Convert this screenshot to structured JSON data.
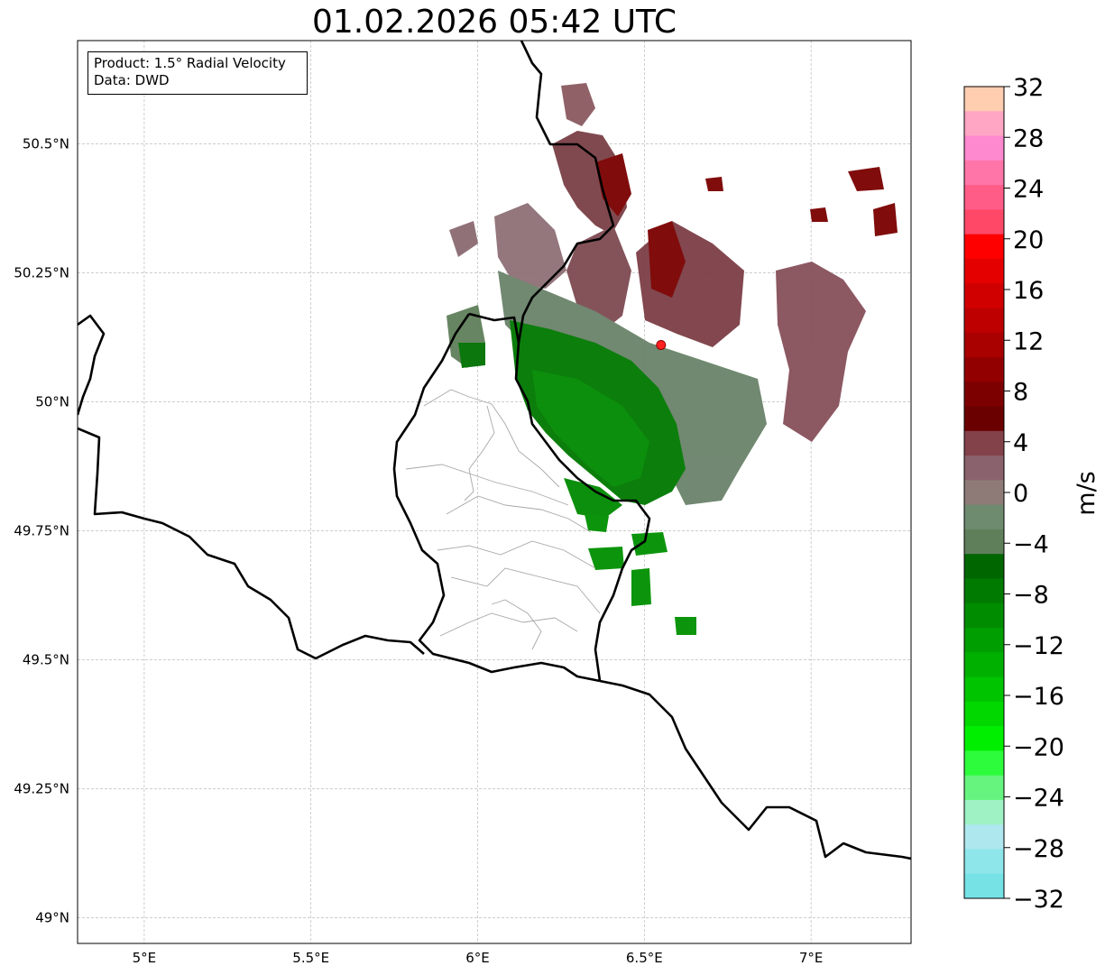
{
  "title": "01.02.2026 05:42 UTC",
  "infobox": {
    "line1": "Product: 1.5° Radial Velocity",
    "line2": "Data: DWD"
  },
  "map": {
    "lon_range": [
      4.8,
      7.3
    ],
    "lat_range": [
      48.95,
      50.7
    ],
    "lon_ticks": [
      {
        "value": 5.0,
        "label": "5°E"
      },
      {
        "value": 5.5,
        "label": "5.5°E"
      },
      {
        "value": 6.0,
        "label": "6°E"
      },
      {
        "value": 6.5,
        "label": "6.5°E"
      },
      {
        "value": 7.0,
        "label": "7°E"
      }
    ],
    "lat_ticks": [
      {
        "value": 50.5,
        "label": "50.5°N"
      },
      {
        "value": 50.25,
        "label": "50.25°N"
      },
      {
        "value": 50.0,
        "label": "50°N"
      },
      {
        "value": 49.75,
        "label": "49.75°N"
      },
      {
        "value": 49.5,
        "label": "49.5°N"
      },
      {
        "value": 49.25,
        "label": "49.25°N"
      },
      {
        "value": 49.0,
        "label": "49°N"
      }
    ],
    "grid": true,
    "radar_site": {
      "lon": 6.55,
      "lat": 50.11,
      "color": "#ff2020"
    }
  },
  "colorbar": {
    "unit_label": "m/s",
    "min": -32,
    "max": 32,
    "ticks": [
      "32",
      "28",
      "24",
      "20",
      "16",
      "12",
      "8",
      "4",
      "0",
      "−4",
      "−8",
      "−12",
      "−16",
      "−20",
      "−24",
      "−28",
      "−32"
    ],
    "colors_top_to_bottom": [
      "#ffcdb0",
      "#ffa6c4",
      "#ff89cf",
      "#ff75a8",
      "#ff5c88",
      "#ff4868",
      "#ff0000",
      "#e50000",
      "#d10000",
      "#be0000",
      "#a90000",
      "#930000",
      "#7d0000",
      "#6b0000",
      "#83424a",
      "#8a626d",
      "#8e7b78",
      "#6f8b6f",
      "#5f7f5a",
      "#006600",
      "#007a00",
      "#008c00",
      "#009e00",
      "#00b000",
      "#00c400",
      "#00d800",
      "#00ef00",
      "#2cfc3c",
      "#66f47e",
      "#9ef2c4",
      "#aee8ee",
      "#8ee6ea",
      "#76e2e6"
    ]
  }
}
